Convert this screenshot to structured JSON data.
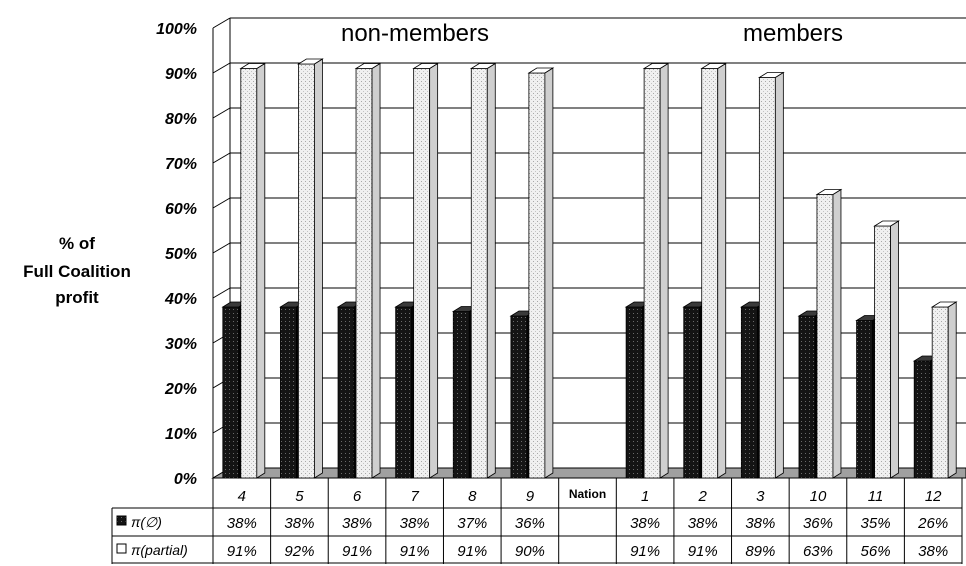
{
  "chart_data": {
    "type": "bar",
    "ylabel_lines": [
      "% of",
      "Full Coalition",
      "profit"
    ],
    "ylim": [
      0,
      100
    ],
    "yticks": [
      "0%",
      "10%",
      "20%",
      "30%",
      "40%",
      "50%",
      "60%",
      "70%",
      "80%",
      "90%",
      "100%"
    ],
    "groups": [
      {
        "label": "non-members"
      },
      {
        "label": "members"
      }
    ],
    "categories": [
      "4",
      "5",
      "6",
      "7",
      "8",
      "9",
      "Nation",
      "1",
      "2",
      "3",
      "10",
      "11",
      "12"
    ],
    "series": [
      {
        "name": "π(∅)",
        "fill": "dark-dotted",
        "values": [
          38,
          38,
          38,
          38,
          37,
          36,
          null,
          38,
          38,
          38,
          36,
          35,
          26
        ],
        "labels": [
          "38%",
          "38%",
          "38%",
          "38%",
          "37%",
          "36%",
          "",
          "38%",
          "38%",
          "38%",
          "36%",
          "35%",
          "26%"
        ]
      },
      {
        "name": "π(partial)",
        "fill": "light-dotted",
        "values": [
          91,
          92,
          91,
          91,
          91,
          90,
          null,
          91,
          91,
          89,
          63,
          56,
          38
        ],
        "labels": [
          "91%",
          "92%",
          "91%",
          "91%",
          "91%",
          "90%",
          "",
          "91%",
          "91%",
          "89%",
          "63%",
          "56%",
          "38%"
        ]
      }
    ],
    "grid": true,
    "legend": "data-table-left",
    "colors": {
      "dark": "#111111",
      "light": "#ededed",
      "floor": "#a0a0a0",
      "grid": "#000000"
    }
  }
}
